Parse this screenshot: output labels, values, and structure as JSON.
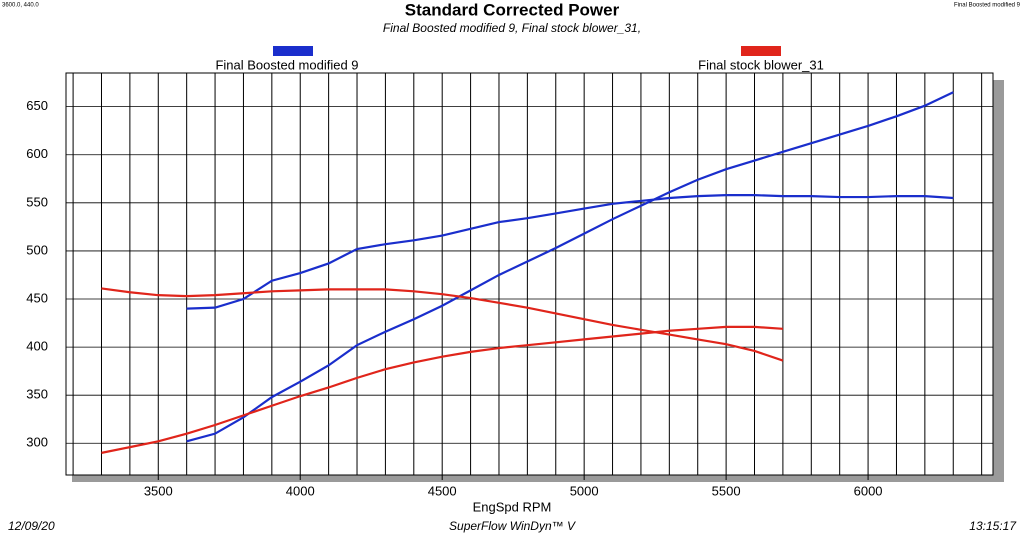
{
  "corner_left": "3600.0, 440.0",
  "corner_right": "Final Boosted modified 9",
  "footer": {
    "date": "12/09/20",
    "product": "SuperFlow WinDyn™ V",
    "time": "13:15:17"
  },
  "chart_data": {
    "type": "line",
    "title": "Standard Corrected Power",
    "subtitle": "Final Boosted modified 9, Final stock blower_31,",
    "x_label": "EngSpd  RPM",
    "x": [
      3300,
      3400,
      3500,
      3600,
      3700,
      3800,
      3900,
      4000,
      4100,
      4200,
      4300,
      4400,
      4500,
      4600,
      4700,
      4800,
      4900,
      5000,
      5100,
      5200,
      5300,
      5400,
      5500,
      5600,
      5700,
      5800,
      5900,
      6000,
      6100,
      6200,
      6300
    ],
    "xlim": [
      3175,
      6440
    ],
    "xticks": [
      3500,
      4000,
      4500,
      5000,
      5500,
      6000
    ],
    "xgrid": [
      3200,
      3300,
      3400,
      3500,
      3600,
      3700,
      3800,
      3900,
      4000,
      4100,
      4200,
      4300,
      4400,
      4500,
      4600,
      4700,
      4800,
      4900,
      5000,
      5100,
      5200,
      5300,
      5400,
      5500,
      5600,
      5700,
      5800,
      5900,
      6000,
      6100,
      6200,
      6300,
      6400
    ],
    "ylim": [
      267,
      685
    ],
    "yticks": [
      300,
      350,
      400,
      450,
      500,
      550,
      600,
      650
    ],
    "grid": true,
    "series": [
      {
        "name": "Final Boosted modified 9",
        "color": "#1a2ecc",
        "curves": [
          [
            null,
            null,
            null,
            440,
            441,
            450,
            469,
            477,
            487,
            502,
            507,
            511,
            516,
            523,
            530,
            534,
            539,
            544,
            549,
            552,
            555,
            557,
            558,
            558,
            557,
            557,
            556,
            556,
            557,
            557,
            555
          ],
          [
            null,
            null,
            null,
            302,
            310,
            327,
            348,
            364,
            381,
            402,
            416,
            429,
            443,
            459,
            475,
            489,
            503,
            518,
            533,
            547,
            561,
            574,
            585,
            594,
            603,
            612,
            621,
            630,
            640,
            651,
            665
          ]
        ]
      },
      {
        "name": "Final stock blower_31",
        "color": "#e0251b",
        "curves": [
          [
            461,
            457,
            454,
            453,
            454,
            456,
            458,
            459,
            460,
            460,
            460,
            458,
            455,
            451,
            446,
            441,
            435,
            429,
            423,
            418,
            413,
            408,
            403,
            396,
            386,
            null,
            null,
            null,
            null,
            null,
            null
          ],
          [
            290,
            296,
            302,
            310,
            319,
            329,
            339,
            349,
            358,
            368,
            377,
            384,
            390,
            395,
            399,
            402,
            405,
            408,
            411,
            414,
            417,
            419,
            421,
            421,
            419,
            null,
            null,
            null,
            null,
            null,
            null
          ]
        ]
      }
    ]
  }
}
